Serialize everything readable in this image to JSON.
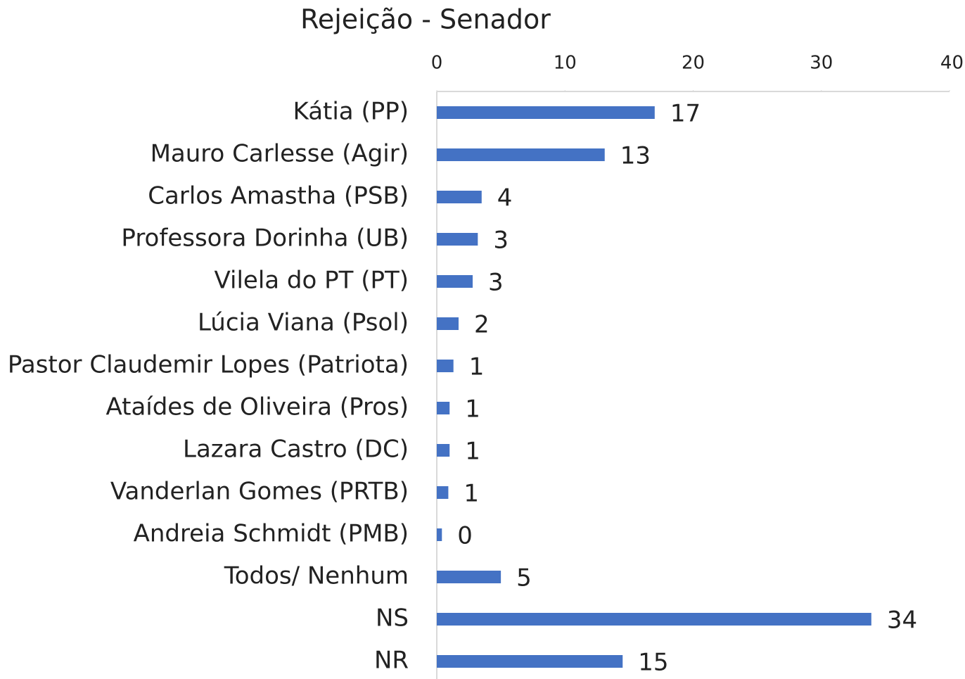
{
  "chart_data": {
    "type": "bar",
    "orientation": "horizontal",
    "title": "Rejeição - Senador",
    "categories": [
      "Kátia (PP)",
      "Mauro Carlesse (Agir)",
      "Carlos Amastha (PSB)",
      "Professora Dorinha (UB)",
      "Vilela do PT (PT)",
      "Lúcia Viana (Psol)",
      "Pastor Claudemir Lopes (Patriota)",
      "Ataídes de Oliveira (Pros)",
      "Lazara Castro (DC)",
      "Vanderlan Gomes (PRTB)",
      "Andreia Schmidt (PMB)",
      "Todos/ Nenhum",
      "NS",
      "NR"
    ],
    "values": [
      17,
      13.1,
      3.5,
      3.2,
      2.8,
      1.7,
      1.3,
      1.0,
      1.0,
      0.9,
      0.4,
      5.0,
      33.9,
      14.5
    ],
    "value_labels": [
      "17",
      "13",
      "4",
      "3",
      "3",
      "2",
      "1",
      "1",
      "1",
      "1",
      "0",
      "5",
      "34",
      "15"
    ],
    "color": "#4472c4",
    "xlim": [
      0,
      40
    ],
    "xticks": [
      0,
      10,
      20,
      30,
      40
    ]
  }
}
